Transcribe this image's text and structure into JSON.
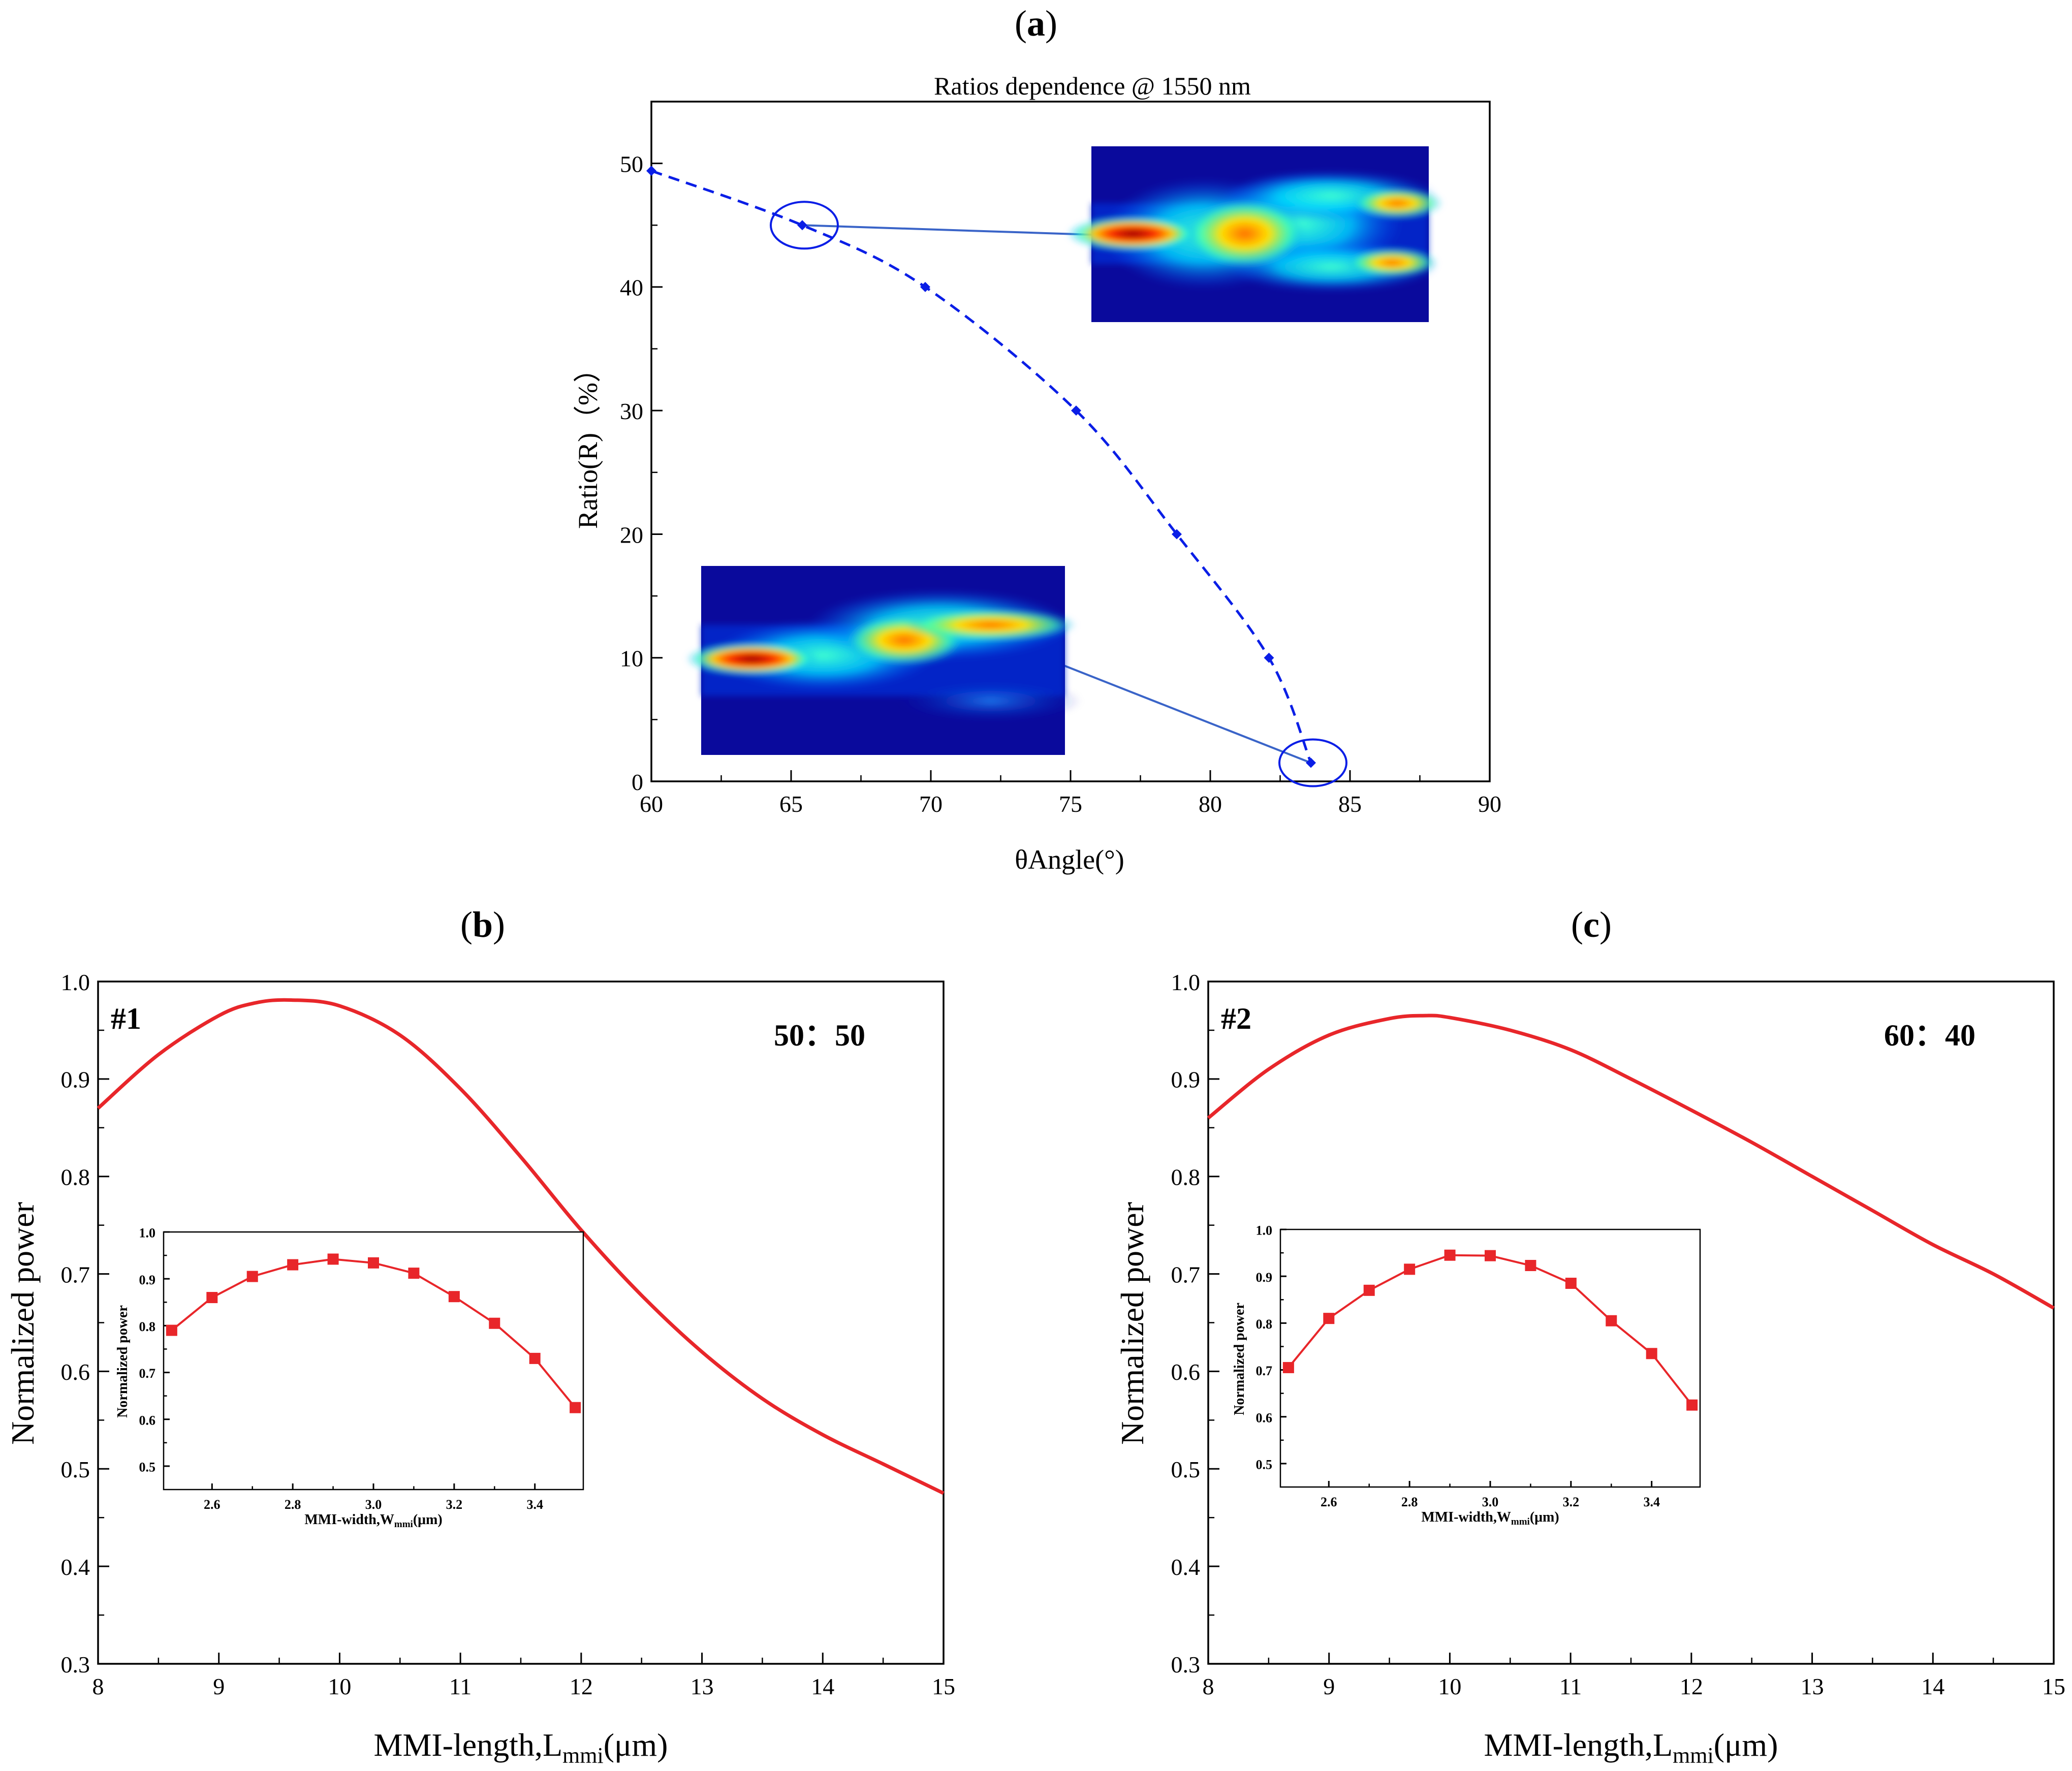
{
  "figure": {
    "colors": {
      "blue_series": "#0a1ee6",
      "red_series": "#e8262a",
      "leader": "#3a64c8"
    }
  },
  "chart_data": [
    {
      "type": "line",
      "panel_label": "a",
      "title": "Ratios dependence @ 1550 nm",
      "xlabel": "θAngle(°)",
      "ylabel": "Ratio(R)（%）",
      "xlim": [
        60,
        90
      ],
      "ylim": [
        0,
        55
      ],
      "xticks": [
        60,
        65,
        70,
        75,
        80,
        85,
        90
      ],
      "yticks": [
        0,
        10,
        20,
        30,
        40,
        50
      ],
      "grid": false,
      "series": [
        {
          "x": [
            60,
            65.4,
            69.8,
            75.2,
            78.8,
            82.1,
            83.6
          ],
          "y": [
            49.4,
            45,
            40,
            30,
            20,
            10,
            1.5
          ],
          "style": "dashed",
          "marker": "diamond",
          "color": "#0a1ee6"
        }
      ],
      "annotations": [
        {
          "type": "ellipse",
          "x": 65.4,
          "y": 45,
          "links_to": "inset-field-top"
        },
        {
          "type": "ellipse",
          "x": 83.6,
          "y": 1.5,
          "links_to": "inset-field-bottom"
        }
      ],
      "insets": [
        "field-profile-top",
        "field-profile-bottom"
      ]
    },
    {
      "type": "line",
      "panel_label": "b",
      "annotation_id": "#1",
      "ratio_label": "50：50",
      "xlabel_main": "MMI-length,L",
      "xlabel_sub": "mmi",
      "xlabel_unit": "(μm)",
      "ylabel": "Normalized power",
      "xlim": [
        8,
        15
      ],
      "ylim": [
        0.3,
        1.0
      ],
      "xticks": [
        8,
        9,
        10,
        11,
        12,
        13,
        14,
        15
      ],
      "yticks": [
        0.3,
        0.4,
        0.5,
        0.6,
        0.7,
        0.8,
        0.9,
        1.0
      ],
      "grid": false,
      "series": [
        {
          "x": [
            8,
            8.5,
            9,
            9.3,
            9.6,
            10,
            10.5,
            11,
            11.5,
            12,
            12.5,
            13,
            13.5,
            14,
            14.5,
            15
          ],
          "y": [
            0.87,
            0.925,
            0.965,
            0.978,
            0.981,
            0.975,
            0.945,
            0.89,
            0.82,
            0.745,
            0.678,
            0.62,
            0.572,
            0.535,
            0.505,
            0.475
          ],
          "color": "#e8262a"
        }
      ],
      "inset": {
        "xlabel_main": "MMI-width,W",
        "xlabel_sub": "mmi",
        "xlabel_unit": "(μm)",
        "ylabel": "Normalized power",
        "xlim": [
          2.48,
          3.52
        ],
        "ylim": [
          0.45,
          1.0
        ],
        "xticks": [
          "2.6",
          "2.8",
          "3.0",
          "3.2",
          "3.4"
        ],
        "yticks": [
          "0.5",
          "0.6",
          "0.7",
          "0.8",
          "0.9",
          "1.0"
        ],
        "series": [
          {
            "x": [
              2.5,
              2.6,
              2.7,
              2.8,
              2.9,
              3.0,
              3.1,
              3.2,
              3.3,
              3.4,
              3.5
            ],
            "y": [
              0.79,
              0.86,
              0.905,
              0.93,
              0.942,
              0.934,
              0.912,
              0.862,
              0.805,
              0.73,
              0.625
            ],
            "marker": "square",
            "color": "#e8262a"
          }
        ]
      }
    },
    {
      "type": "line",
      "panel_label": "c",
      "annotation_id": "#2",
      "ratio_label": "60：40",
      "xlabel_main": "MMI-length,L",
      "xlabel_sub": "mmi",
      "xlabel_unit": "(μm)",
      "ylabel": "Normalized power",
      "xlim": [
        8,
        15
      ],
      "ylim": [
        0.3,
        1.0
      ],
      "xticks": [
        8,
        9,
        10,
        11,
        12,
        13,
        14,
        15
      ],
      "yticks": [
        0.3,
        0.4,
        0.5,
        0.6,
        0.7,
        0.8,
        0.9,
        1.0
      ],
      "grid": false,
      "series": [
        {
          "x": [
            8,
            8.5,
            9,
            9.5,
            9.8,
            10,
            10.5,
            11,
            11.5,
            12,
            12.5,
            13,
            13.5,
            14,
            14.5,
            15
          ],
          "y": [
            0.86,
            0.91,
            0.945,
            0.962,
            0.965,
            0.963,
            0.95,
            0.93,
            0.9,
            0.868,
            0.835,
            0.8,
            0.765,
            0.73,
            0.7,
            0.665
          ],
          "color": "#e8262a"
        }
      ],
      "inset": {
        "xlabel_main": "MMI-width,W",
        "xlabel_sub": "mmi",
        "xlabel_unit": "(μm)",
        "ylabel": "Normalized power",
        "xlim": [
          2.48,
          3.52
        ],
        "ylim": [
          0.45,
          1.0
        ],
        "xticks": [
          "2.6",
          "2.8",
          "3.0",
          "3.2",
          "3.4"
        ],
        "yticks": [
          "0.5",
          "0.6",
          "0.7",
          "0.8",
          "0.9",
          "1.0"
        ],
        "series": [
          {
            "x": [
              2.5,
              2.6,
              2.7,
              2.8,
              2.9,
              3.0,
              3.1,
              3.2,
              3.3,
              3.4,
              3.5
            ],
            "y": [
              0.705,
              0.81,
              0.87,
              0.915,
              0.945,
              0.944,
              0.923,
              0.885,
              0.805,
              0.735,
              0.625
            ],
            "marker": "square",
            "color": "#e8262a"
          }
        ]
      }
    }
  ]
}
